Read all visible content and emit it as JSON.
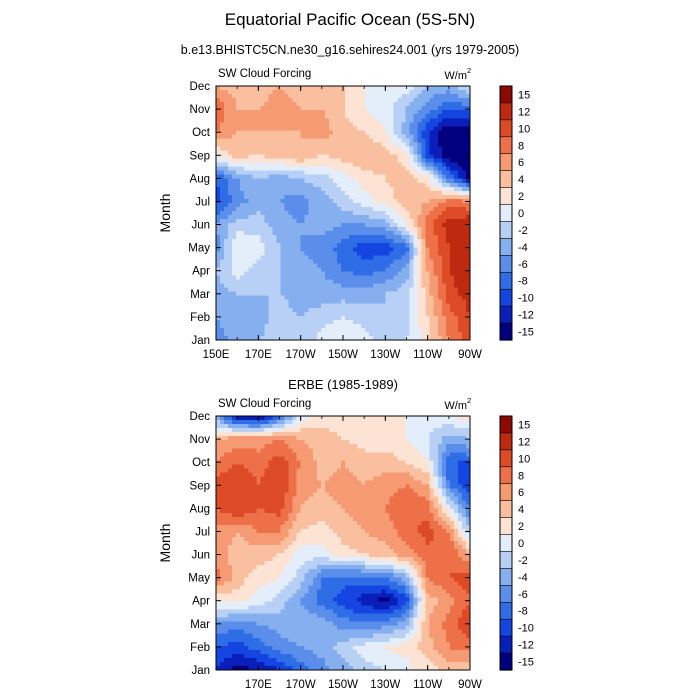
{
  "title": "Equatorial Pacific Ocean (5S-5N)",
  "subtitle": "b.e13.BHISTC5CN.ne30_g16.sehires24.001 (yrs 1979-2005)",
  "chart_data": [
    {
      "type": "heatmap",
      "panel_title": "",
      "left_label": "SW Cloud Forcing",
      "units": "W/m",
      "units_sup": "2",
      "xlabel": "",
      "ylabel": "Month",
      "xlim": [
        150,
        270
      ],
      "x_ticks": [
        {
          "value": 150,
          "label": "150E"
        },
        {
          "value": 170,
          "label": "170E"
        },
        {
          "value": 190,
          "label": "170W"
        },
        {
          "value": 210,
          "label": "150W"
        },
        {
          "value": 230,
          "label": "130W"
        },
        {
          "value": 250,
          "label": "110W"
        },
        {
          "value": 270,
          "label": "90W"
        }
      ],
      "y_ticks": [
        "Jan",
        "Feb",
        "Mar",
        "Apr",
        "May",
        "Jun",
        "Jul",
        "Aug",
        "Sep",
        "Oct",
        "Nov",
        "Dec"
      ],
      "color_levels": [
        -15,
        -12,
        -10,
        -8,
        -6,
        -4,
        -2,
        0,
        2,
        4,
        6,
        8,
        10,
        12,
        15
      ],
      "colorbar_labels": [
        "15",
        "12",
        "10",
        "8",
        "6",
        "4",
        "2",
        "0",
        "-2",
        "-4",
        "-6",
        "-8",
        "-10",
        "-12",
        "-15"
      ],
      "colors": [
        "#02007f",
        "#0a1fb9",
        "#1545e0",
        "#2f6de6",
        "#5a8eea",
        "#86aff0",
        "#b8d0f6",
        "#e4eefb",
        "#fde3d3",
        "#f9bf9f",
        "#f59a72",
        "#ee7049",
        "#dc4a26",
        "#bd2a10",
        "#8c0a02"
      ],
      "grid_x": [
        150,
        160,
        170,
        180,
        190,
        200,
        210,
        220,
        230,
        240,
        250,
        260,
        270
      ],
      "grid_y_months": [
        "Jan",
        "Feb",
        "Mar",
        "Apr",
        "May",
        "Jun",
        "Jul",
        "Aug",
        "Sep",
        "Oct",
        "Nov",
        "Dec"
      ],
      "z": [
        [
          -5,
          -3,
          -2,
          -1,
          -2,
          1,
          2,
          1,
          -1,
          0,
          3,
          8,
          11
        ],
        [
          -4,
          -3,
          -3,
          -1,
          -2,
          -1,
          0,
          -1,
          -2,
          -1,
          4,
          9,
          12
        ],
        [
          -3,
          -2,
          -2,
          -2,
          -3,
          -3,
          -3,
          -3,
          -2,
          -1,
          5,
          11,
          13
        ],
        [
          -2,
          1,
          -1,
          -2,
          -3,
          -4,
          -6,
          -7,
          -6,
          -3,
          6,
          12,
          14
        ],
        [
          -5,
          2,
          1,
          -2,
          -4,
          -5,
          -7,
          -9,
          -9,
          -7,
          8,
          12,
          15
        ],
        [
          -4,
          -1,
          -1,
          -3,
          -4,
          -3,
          -4,
          -4,
          -3,
          2,
          9,
          13,
          14
        ],
        [
          -9,
          -5,
          -3,
          -4,
          -5,
          -3,
          -1,
          1,
          3,
          5,
          6,
          9,
          8
        ],
        [
          -8,
          -4,
          -2,
          -3,
          -2,
          -1,
          1,
          3,
          4,
          5,
          3,
          -6,
          -13
        ],
        [
          2,
          5,
          4,
          5,
          6,
          4,
          5,
          6,
          5,
          3,
          -9,
          -14,
          -15
        ],
        [
          8,
          6,
          6,
          6,
          6,
          7,
          5,
          4,
          2,
          -3,
          -10,
          -14,
          -14
        ],
        [
          10,
          6,
          6,
          7,
          6,
          6,
          4,
          2,
          1,
          -2,
          -5,
          -8,
          -7
        ],
        [
          6,
          5,
          5,
          6,
          5,
          4,
          4,
          2,
          2,
          1,
          -2,
          -3,
          1
        ]
      ]
    },
    {
      "type": "heatmap",
      "panel_title": "ERBE (1985-1989)",
      "left_label": "SW Cloud Forcing",
      "units": "W/m",
      "units_sup": "2",
      "xlabel": "",
      "ylabel": "Month",
      "xlim": [
        150,
        270
      ],
      "x_ticks": [
        {
          "value": 170,
          "label": "170E"
        },
        {
          "value": 190,
          "label": "170W"
        },
        {
          "value": 210,
          "label": "150W"
        },
        {
          "value": 230,
          "label": "130W"
        },
        {
          "value": 250,
          "label": "110W"
        },
        {
          "value": 270,
          "label": "90W"
        }
      ],
      "y_ticks": [
        "Jan",
        "Feb",
        "Mar",
        "Apr",
        "May",
        "Jun",
        "Jul",
        "Aug",
        "Sep",
        "Oct",
        "Nov",
        "Dec"
      ],
      "color_levels": [
        -15,
        -12,
        -10,
        -8,
        -6,
        -4,
        -2,
        0,
        2,
        4,
        6,
        8,
        10,
        12,
        15
      ],
      "colorbar_labels": [
        "15",
        "12",
        "10",
        "8",
        "6",
        "4",
        "2",
        "0",
        "-2",
        "-4",
        "-6",
        "-8",
        "-10",
        "-12",
        "-15"
      ],
      "colors": [
        "#02007f",
        "#0a1fb9",
        "#1545e0",
        "#2f6de6",
        "#5a8eea",
        "#86aff0",
        "#b8d0f6",
        "#e4eefb",
        "#fde3d3",
        "#f9bf9f",
        "#f59a72",
        "#ee7049",
        "#dc4a26",
        "#bd2a10",
        "#8c0a02"
      ],
      "grid_x": [
        150,
        160,
        170,
        180,
        190,
        200,
        210,
        220,
        230,
        240,
        250,
        260,
        270
      ],
      "grid_y_months": [
        "Jan",
        "Feb",
        "Mar",
        "Apr",
        "May",
        "Jun",
        "Jul",
        "Aug",
        "Sep",
        "Oct",
        "Nov",
        "Dec"
      ],
      "z": [
        [
          -10,
          -13,
          -12,
          -10,
          -7,
          -5,
          -3,
          -1,
          0,
          1,
          3,
          5,
          4
        ],
        [
          -8,
          -9,
          -7,
          -5,
          -4,
          -3,
          -1,
          1,
          2,
          3,
          5,
          8,
          9
        ],
        [
          -4,
          -5,
          -4,
          -3,
          -2,
          -3,
          -5,
          -6,
          -5,
          -3,
          6,
          9,
          12
        ],
        [
          2,
          3,
          1,
          -1,
          -4,
          -7,
          -9,
          -11,
          -13,
          -9,
          5,
          7,
          10
        ],
        [
          9,
          5,
          3,
          2,
          -1,
          -6,
          -7,
          -7,
          -6,
          -3,
          8,
          10,
          11
        ],
        [
          7,
          5,
          5,
          4,
          1,
          1,
          3,
          4,
          5,
          7,
          9,
          10,
          6
        ],
        [
          7,
          6,
          8,
          8,
          4,
          3,
          5,
          6,
          7,
          9,
          11,
          8,
          -2
        ],
        [
          10,
          12,
          10,
          11,
          6,
          5,
          6,
          7,
          8,
          10,
          9,
          1,
          -6
        ],
        [
          11,
          12,
          10,
          12,
          7,
          6,
          7,
          6,
          7,
          8,
          6,
          -6,
          -10
        ],
        [
          8,
          10,
          9,
          11,
          8,
          5,
          6,
          5,
          5,
          4,
          2,
          -8,
          -8
        ],
        [
          6,
          7,
          7,
          8,
          6,
          5,
          4,
          3,
          3,
          2,
          0,
          -3,
          -2
        ],
        [
          -4,
          -12,
          -13,
          -8,
          1,
          3,
          3,
          3,
          4,
          2,
          1,
          2,
          3
        ]
      ]
    }
  ]
}
